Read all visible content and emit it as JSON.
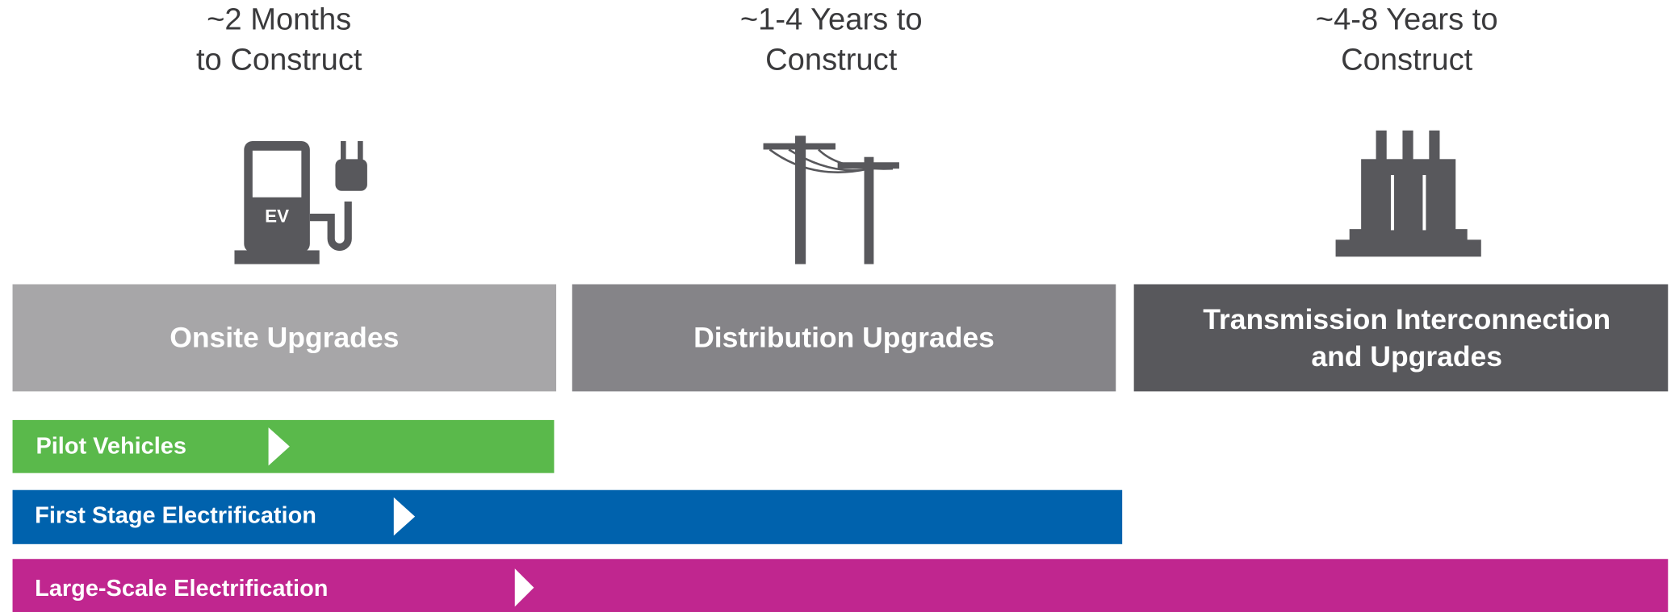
{
  "columns": [
    {
      "time": [
        "~2 Months",
        "to Construct"
      ],
      "label": [
        "Onsite Upgrades"
      ],
      "icon_text": "EV"
    },
    {
      "time": [
        "~1-4 Years to",
        "Construct"
      ],
      "label": [
        "Distribution Upgrades"
      ]
    },
    {
      "time": [
        "~4-8 Years to",
        "Construct"
      ],
      "label": [
        "Transmission Interconnection",
        "and  Upgrades"
      ]
    }
  ],
  "bars": [
    {
      "label": "Pilot Vehicles"
    },
    {
      "label": "First Stage Electrification"
    },
    {
      "label": "Large-Scale Electrification"
    }
  ]
}
